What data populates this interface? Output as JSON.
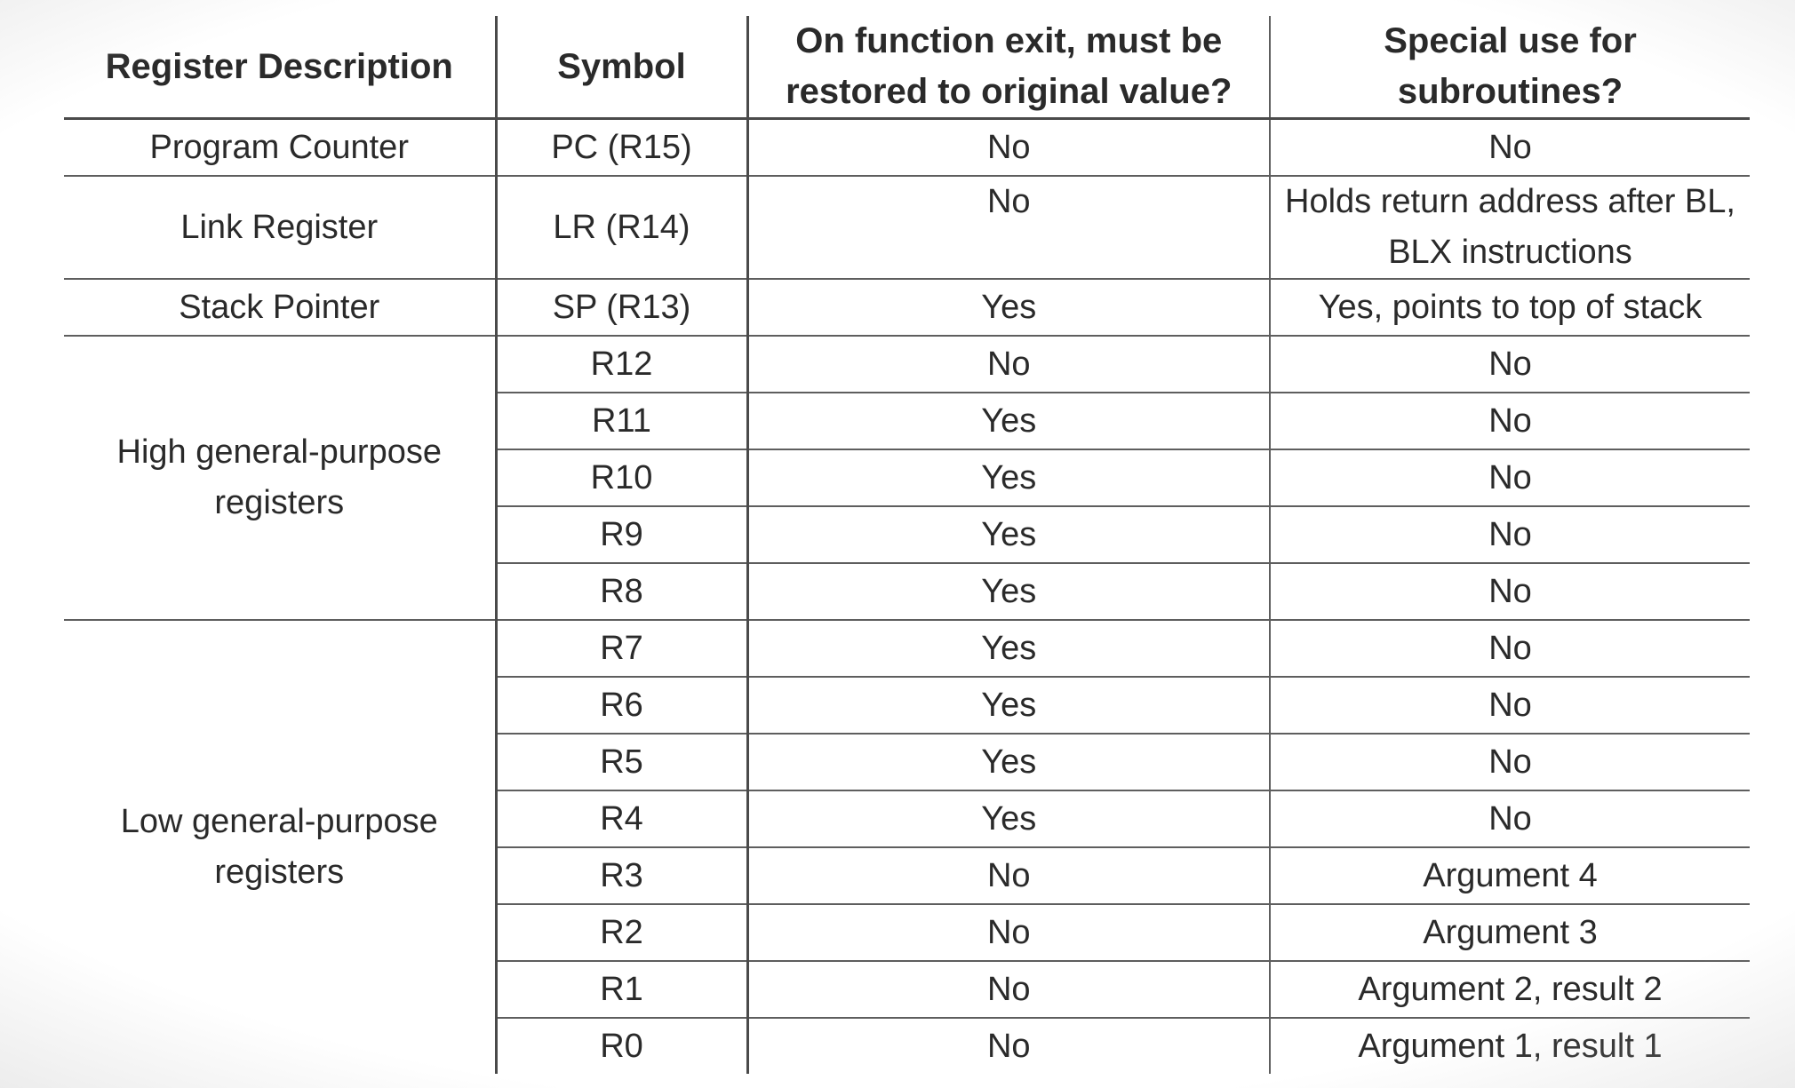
{
  "table": {
    "headers": [
      "Register Description",
      "Symbol",
      "On function exit, must be restored to original value?",
      "Special use for subroutines?"
    ],
    "rows": [
      {
        "description": "Program Counter",
        "symbol": "PC (R15)",
        "restore": "No",
        "special": "No"
      },
      {
        "description": "Link Register",
        "symbol": "LR (R14)",
        "restore": "No",
        "special": "Holds return address after BL, BLX instructions"
      },
      {
        "description": "Stack Pointer",
        "symbol": "SP (R13)",
        "restore": "Yes",
        "special": "Yes, points to top of stack"
      },
      {
        "description": "High general-purpose registers",
        "symbol": "R12",
        "restore": "No",
        "special": "No"
      },
      {
        "symbol": "R11",
        "restore": "Yes",
        "special": "No"
      },
      {
        "symbol": "R10",
        "restore": "Yes",
        "special": "No"
      },
      {
        "symbol": "R9",
        "restore": "Yes",
        "special": "No"
      },
      {
        "symbol": "R8",
        "restore": "Yes",
        "special": "No"
      },
      {
        "description": "Low general-purpose registers",
        "symbol": "R7",
        "restore": "Yes",
        "special": "No"
      },
      {
        "symbol": "R6",
        "restore": "Yes",
        "special": "No"
      },
      {
        "symbol": "R5",
        "restore": "Yes",
        "special": "No"
      },
      {
        "symbol": "R4",
        "restore": "Yes",
        "special": "No"
      },
      {
        "symbol": "R3",
        "restore": "No",
        "special": "Argument 4"
      },
      {
        "symbol": "R2",
        "restore": "No",
        "special": "Argument 3"
      },
      {
        "symbol": "R1",
        "restore": "No",
        "special": "Argument 2, result 2"
      },
      {
        "symbol": "R0",
        "restore": "No",
        "special": "Argument 1, result 1"
      }
    ]
  }
}
